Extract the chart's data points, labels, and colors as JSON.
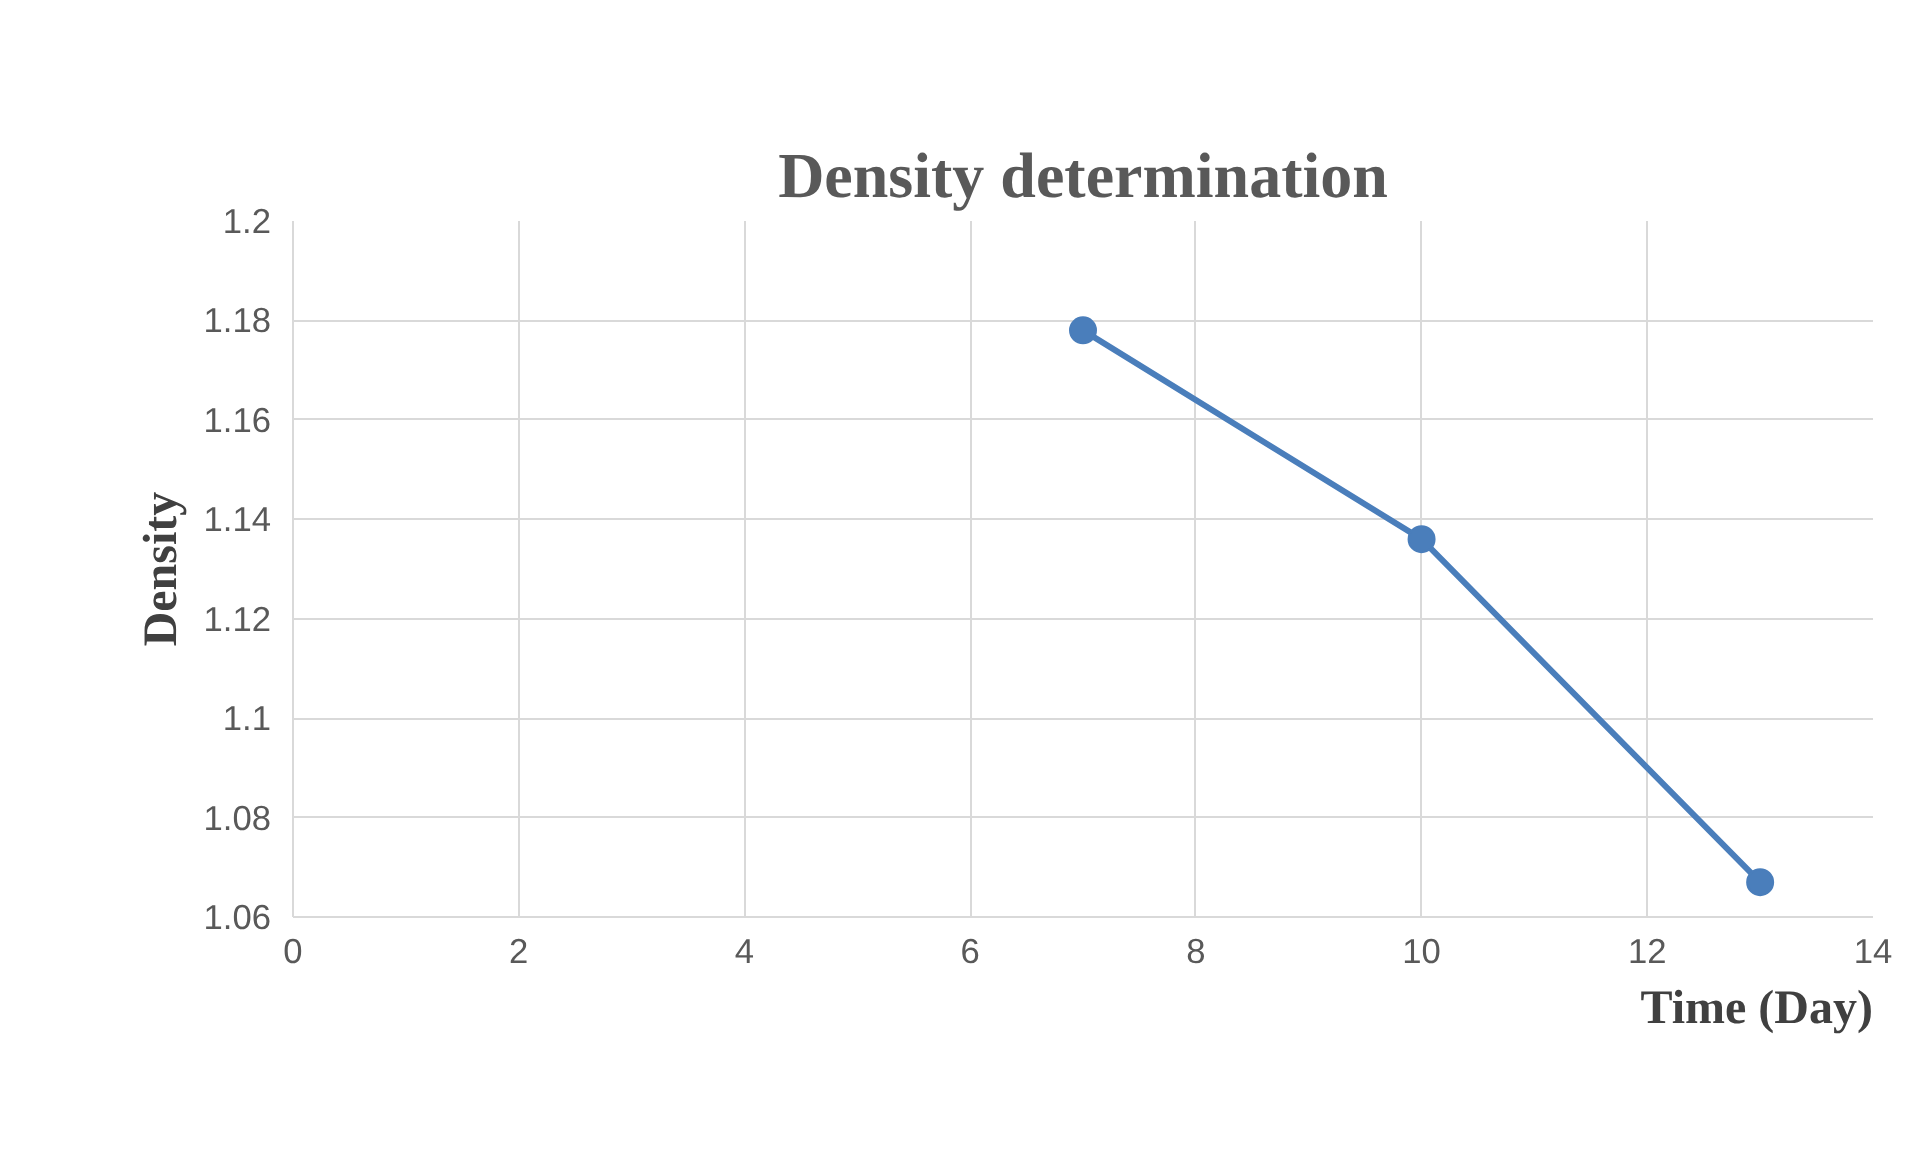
{
  "chart_data": {
    "type": "line",
    "title": "Density determination",
    "xlabel": "Time (Day)",
    "ylabel": "Density",
    "x": [
      7,
      10,
      13
    ],
    "series": [
      {
        "color": "#4a7ebb",
        "values": [
          1.178,
          1.136,
          1.067
        ]
      }
    ],
    "xlim": [
      0,
      14
    ],
    "xticks": [
      0,
      2,
      4,
      6,
      8,
      10,
      12,
      14
    ],
    "ylim": [
      1.06,
      1.2
    ],
    "yticks": [
      1.06,
      1.08,
      1.1,
      1.12,
      1.14,
      1.16,
      1.18,
      1.2
    ],
    "grid": true,
    "marker": "circle",
    "line_style": "solid"
  }
}
